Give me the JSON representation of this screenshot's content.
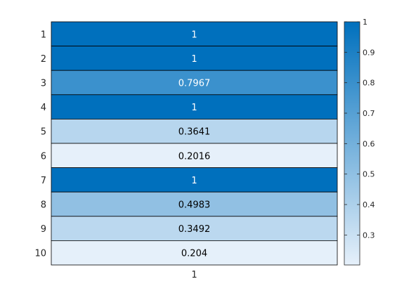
{
  "chart_data": {
    "type": "heatmap",
    "title": "",
    "xlabel": "",
    "ylabel": "",
    "x_categories": [
      "1"
    ],
    "y_categories": [
      "1",
      "2",
      "3",
      "4",
      "5",
      "6",
      "7",
      "8",
      "9",
      "10"
    ],
    "values": [
      [
        1
      ],
      [
        1
      ],
      [
        0.7967
      ],
      [
        1
      ],
      [
        0.3641
      ],
      [
        0.2016
      ],
      [
        1
      ],
      [
        0.4983
      ],
      [
        0.3492
      ],
      [
        0.204
      ]
    ],
    "cell_labels": [
      "1",
      "1",
      "0.7967",
      "1",
      "0.3641",
      "0.2016",
      "1",
      "0.4983",
      "0.3492",
      "0.204"
    ],
    "color_range": [
      0.2016,
      1
    ],
    "colormap": {
      "low": "#e6f0fa",
      "high": "#0070bd"
    },
    "colorbar": {
      "location": "right",
      "ticks": [
        0.3,
        0.4,
        0.5,
        0.6,
        0.7,
        0.8,
        0.9,
        1
      ],
      "tick_labels": [
        "0.3",
        "0.4",
        "0.5",
        "0.6",
        "0.7",
        "0.8",
        "0.9",
        "1"
      ]
    },
    "grid": true,
    "cell_border_color": "#000000"
  }
}
